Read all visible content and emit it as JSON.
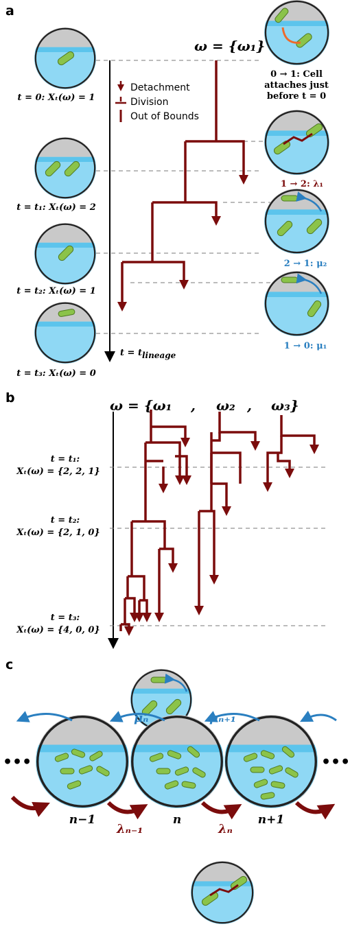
{
  "panel_a": {
    "label": "a",
    "omega": "ω = {ω₁}",
    "legend": [
      "Detachment",
      "Division",
      "Out of Bounds"
    ],
    "states": [
      "t = 0: Xₜ(ω) = 1",
      "t = t₁: Xₜ(ω) = 2",
      "t = t₂: Xₜ(ω) = 1",
      "t = t₃: Xₜ(ω) = 0"
    ],
    "transitions": [
      "0 → 1: Cell",
      "attaches just",
      "before t = 0",
      "1 → 2: λ₁",
      "2 → 1: μ₂",
      "1 → 0: μ₁"
    ],
    "axis_label": "t = t",
    "axis_label_sub": "lineage"
  },
  "panel_b": {
    "label": "b",
    "omega": [
      "ω = {ω₁",
      ",",
      "ω₂",
      ",",
      "ω₃}"
    ],
    "times": [
      {
        "time": "t = t₁:",
        "state": "Xₜ(ω) = {2, 2, 1}"
      },
      {
        "time": "t = t₂:",
        "state": "Xₜ(ω) = {2, 1, 0}"
      },
      {
        "time": "t = t₃:",
        "state": "Xₜ(ω) = {4, 0, 0}"
      }
    ]
  },
  "panel_c": {
    "label": "c",
    "rates_detach": [
      "μₙ",
      "μₙ₊₁"
    ],
    "rates_divide": [
      "λₙ₋₁",
      "λₙ"
    ],
    "states": [
      "n−1",
      "n",
      "n+1"
    ],
    "ellipsis": [
      "•••",
      "•••"
    ]
  }
}
